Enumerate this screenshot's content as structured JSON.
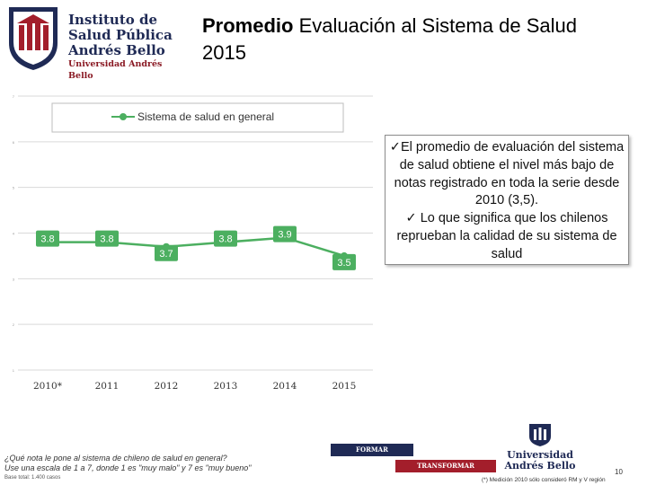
{
  "logo": {
    "line1": "Instituto de",
    "line2": "Salud Pública",
    "line3": "Andrés Bello",
    "line4": "Universidad Andrés Bello"
  },
  "title": {
    "bold": "Promedio",
    "rest": " Evaluación al Sistema de Salud",
    "year": "2015"
  },
  "chart_data": {
    "type": "line",
    "categories": [
      "2010*",
      "2011",
      "2012",
      "2013",
      "2014",
      "2015"
    ],
    "series": [
      {
        "name": "Sistema de salud en general",
        "values": [
          3.8,
          3.8,
          3.7,
          3.8,
          3.9,
          3.5
        ],
        "color": "#4caf60"
      }
    ],
    "ylim": [
      1,
      7
    ],
    "yticks": [
      1,
      2,
      3,
      4,
      5,
      6,
      7
    ],
    "legend": "top",
    "grid": true
  },
  "note": {
    "line1": "✓El promedio de evaluación del sistema de salud obtiene el nivel más bajo de notas registrado en toda la serie desde 2010 (3,5).",
    "line2": "✓ Lo que significa que los chilenos reprueban la calidad de su sistema de salud"
  },
  "footer": {
    "question": "¿Qué nota le pone al sistema de chileno de salud en general?",
    "scale": "Use una escala de 1 a 7, donde 1 es \"muy malo\" y 7 es \"muy bueno\"",
    "base": "Base total: 1.400 casos",
    "banner1": "FORMAR",
    "banner2": "TRANSFORMAR",
    "university_line1": "Universidad",
    "university_line2": "Andrés Bello",
    "page_number": "10",
    "footnote": "(*) Medición 2010 sólo consideró RM y V región"
  }
}
